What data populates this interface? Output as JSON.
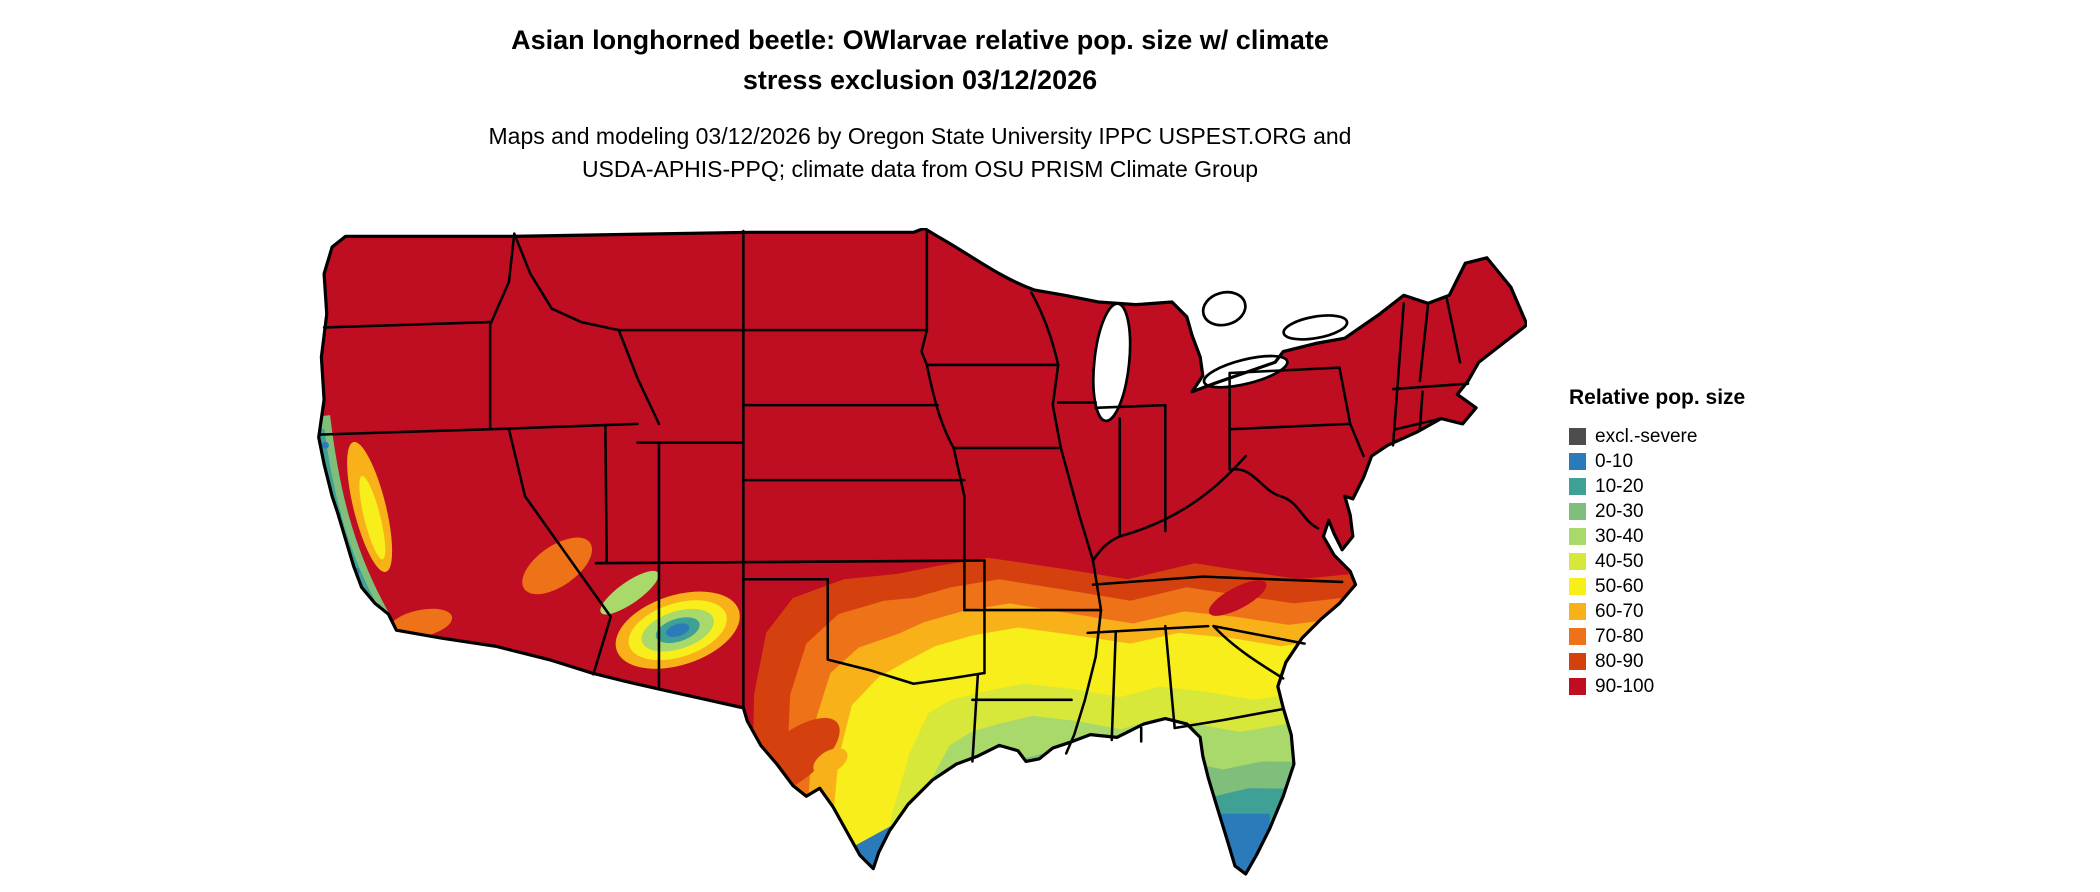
{
  "title": {
    "line1": "Asian longhorned beetle: OWlarvae relative pop. size w/ climate",
    "line2": "stress exclusion 03/12/2026"
  },
  "subtitle": {
    "line1": "Maps and modeling 03/12/2026 by Oregon State University IPPC USPEST.ORG and",
    "line2": "USDA-APHIS-PPQ; climate data from OSU PRISM Climate Group"
  },
  "legend": {
    "title": "Relative pop. size",
    "items": [
      {
        "label": "excl.-severe",
        "color": "#4d4d4d"
      },
      {
        "label": "0-10",
        "color": "#2b7bba"
      },
      {
        "label": "10-20",
        "color": "#3fa096"
      },
      {
        "label": "20-30",
        "color": "#7fbf7b"
      },
      {
        "label": "30-40",
        "color": "#a8d96a"
      },
      {
        "label": "40-50",
        "color": "#d7e83b"
      },
      {
        "label": "50-60",
        "color": "#f7ee1b"
      },
      {
        "label": "60-70",
        "color": "#f8b119"
      },
      {
        "label": "70-80",
        "color": "#ee7217"
      },
      {
        "label": "80-90",
        "color": "#d5410e"
      },
      {
        "label": "90-100",
        "color": "#bf0d21"
      }
    ]
  },
  "map": {
    "water_color": "#ffffff",
    "border_color": "#000000"
  }
}
